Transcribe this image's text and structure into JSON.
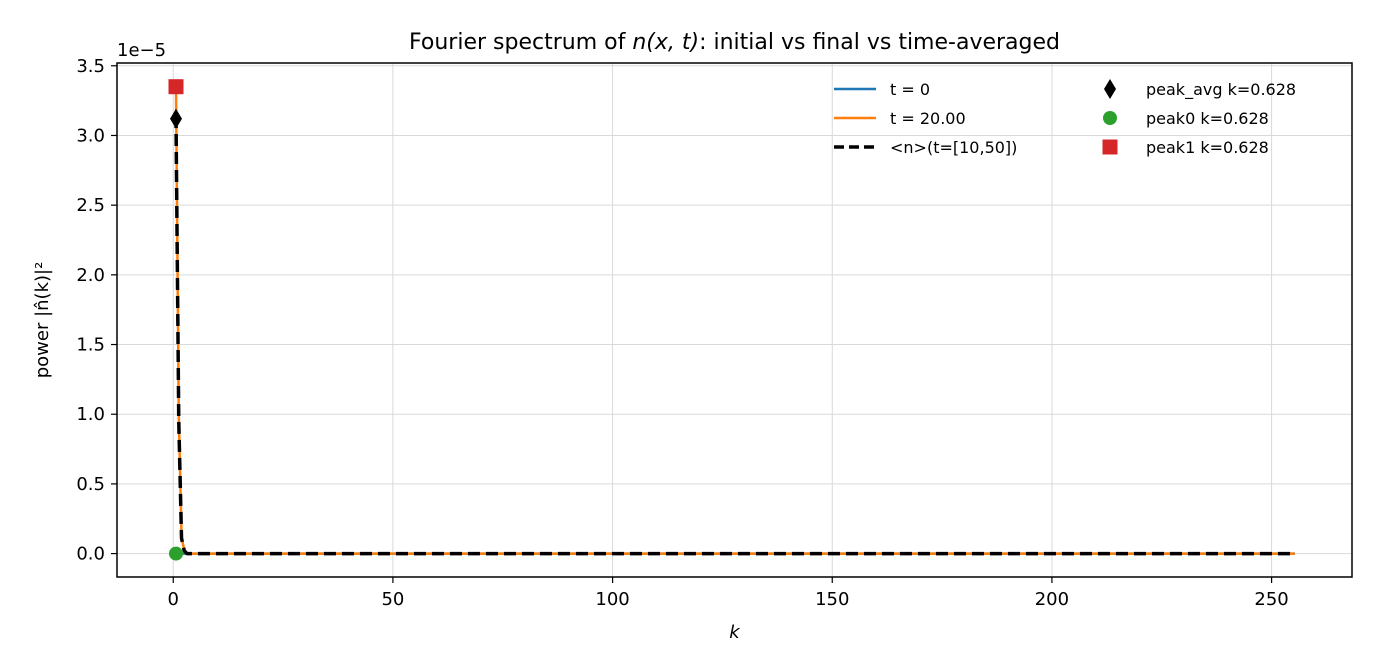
{
  "chart_data": {
    "type": "line",
    "title_prefix": "Fourier spectrum of ",
    "title_math": "n(x, t)",
    "title_suffix": ": initial vs final vs time-averaged",
    "xlabel": "k",
    "ylabel": "power |n̂(k)|²",
    "y_offset_label": "1e−5",
    "xlim": [
      -12.8,
      268.3
    ],
    "ylim": [
      -0.168,
      3.52
    ],
    "xticks": [
      0,
      50,
      100,
      150,
      200,
      250
    ],
    "xtick_labels": [
      "0",
      "50",
      "100",
      "150",
      "200",
      "250"
    ],
    "yticks": [
      0.0,
      0.5,
      1.0,
      1.5,
      2.0,
      2.5,
      3.0,
      3.5
    ],
    "ytick_labels": [
      "0.0",
      "0.5",
      "1.0",
      "1.5",
      "2.0",
      "2.5",
      "3.0",
      "3.5"
    ],
    "grid": true,
    "series": [
      {
        "name": "t = 0",
        "color": "#1f77b4",
        "style": "solid",
        "x": [
          0,
          0.628,
          1.257,
          1.885,
          2.513,
          3.142,
          5,
          50,
          100,
          150,
          200,
          255.3
        ],
        "y": [
          0,
          0,
          0,
          0,
          0,
          0,
          0,
          0,
          0,
          0,
          0,
          0
        ]
      },
      {
        "name": "t = 20.00",
        "color": "#ff7f0e",
        "style": "solid",
        "x": [
          0,
          0.628,
          1.257,
          1.885,
          2.513,
          3.142,
          5,
          50,
          100,
          150,
          200,
          255.3
        ],
        "y": [
          3.35,
          3.35,
          1.0,
          0.12,
          0.02,
          0.0,
          0,
          0,
          0,
          0,
          0,
          0
        ]
      },
      {
        "name": "<n>(t=[10,50])",
        "color": "#000000",
        "style": "dashed",
        "x": [
          0,
          0.628,
          1.257,
          1.885,
          2.513,
          3.142,
          5,
          50,
          100,
          150,
          200,
          255.3
        ],
        "y": [
          3.12,
          3.12,
          0.95,
          0.11,
          0.02,
          0.0,
          0,
          0,
          0,
          0,
          0,
          0
        ]
      }
    ],
    "markers": [
      {
        "name": "peak_avg k=0.628",
        "color": "#000000",
        "shape": "diamond",
        "x": 0.628,
        "y": 3.12
      },
      {
        "name": "peak0 k=0.628",
        "color": "#2ca02c",
        "shape": "circle",
        "x": 0.628,
        "y": 0.0
      },
      {
        "name": "peak1 k=0.628",
        "color": "#d62728",
        "shape": "square",
        "x": 0.628,
        "y": 3.35
      }
    ],
    "legend_placement": "top-right"
  }
}
